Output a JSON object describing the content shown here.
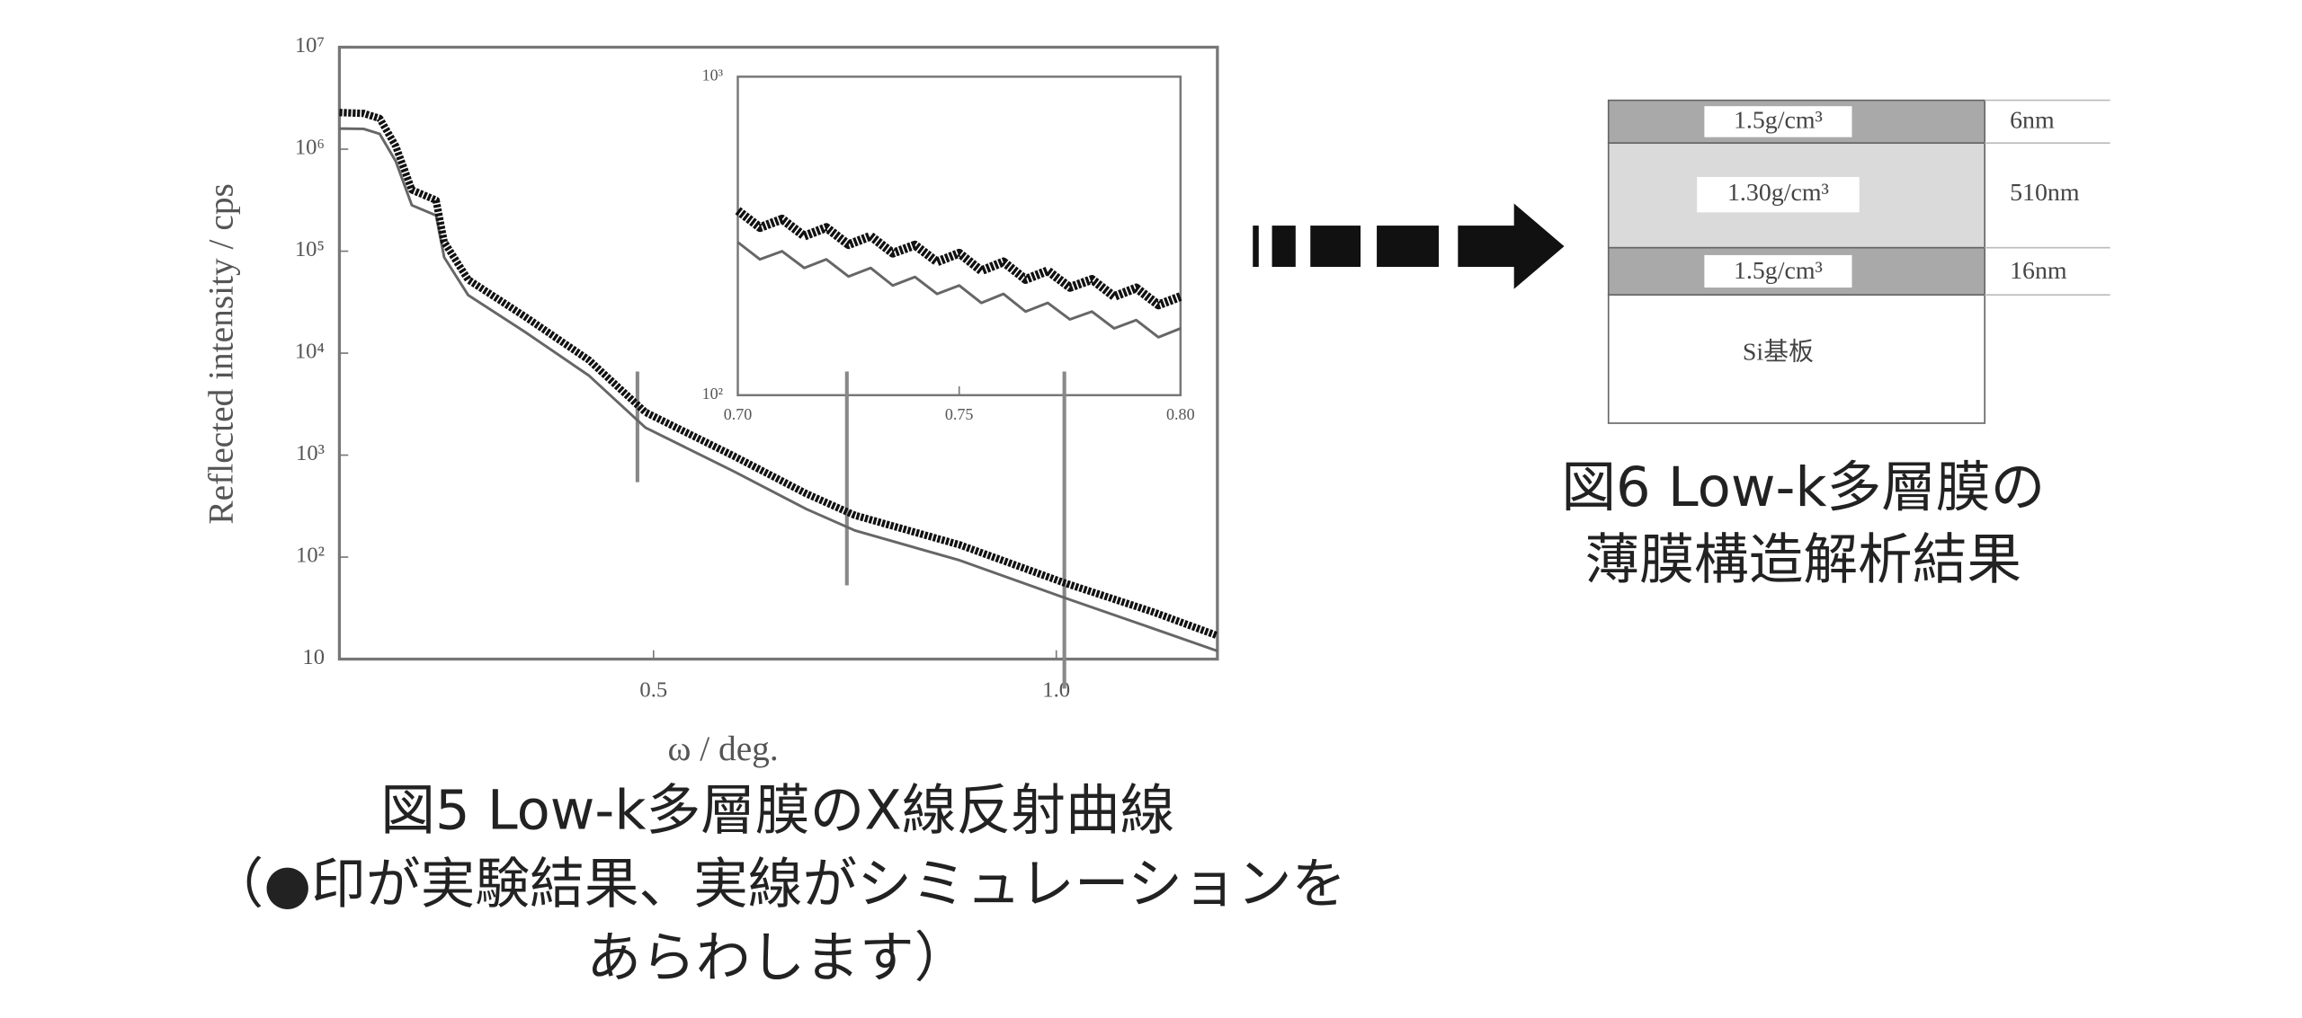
{
  "chart_data": [
    {
      "type": "line",
      "y_label": "Reflected intensity / cps",
      "x_label": "ω / deg.",
      "log_y": true,
      "xlim": [
        0.11,
        1.2
      ],
      "ylim": [
        10,
        10000000
      ],
      "xticks": [
        0.5,
        {
          "value": 1,
          "label": "1.0"
        }
      ],
      "yticks": [
        10,
        {
          "value": 100,
          "label": "10²"
        },
        {
          "value": 1000,
          "label": "10³"
        },
        {
          "value": 10000,
          "label": "10⁴"
        },
        {
          "value": 100000,
          "label": "10⁵"
        },
        {
          "value": 1000000,
          "label": "10⁶"
        },
        {
          "value": 10000000,
          "label": "10⁷"
        }
      ],
      "x": [
        0.11,
        0.14,
        0.16,
        0.18,
        0.2,
        0.23,
        0.24,
        0.27,
        0.34,
        0.42,
        0.49,
        0.6,
        0.69,
        0.75,
        0.88,
        1.01,
        1.12,
        1.2
      ],
      "series": [
        {
          "color": "#111111",
          "style": "dots",
          "values": [
            2290000,
            2240000,
            2000000,
            1070000,
            398000,
            316000,
            123000,
            52500,
            22900,
            8510,
            2630,
            977,
            417,
            257,
            132,
            56,
            29,
            17
          ]
        },
        {
          "color": "#666666",
          "style": "line",
          "values": [
            1590000,
            1580000,
            1410000,
            760000,
            282000,
            224000,
            87000,
            37000,
            16200,
            6000,
            1860,
            690,
            295,
            182,
            93,
            40,
            20,
            12
          ]
        }
      ],
      "vlines": [
        0.48,
        0.74,
        1.01
      ]
    },
    {
      "type": "line",
      "log_y": true,
      "xlim": [
        0.7,
        0.8
      ],
      "ylim": [
        100,
        1000
      ],
      "xticks": [
        {
          "value": 0.7,
          "label": "0.70"
        },
        {
          "value": 0.75,
          "label": "0.75"
        },
        {
          "value": 0.8,
          "label": "0.80"
        }
      ],
      "yticks": [
        {
          "value": 100,
          "label": "10²"
        },
        {
          "value": 1000,
          "label": "10³"
        }
      ],
      "x": [
        0.7,
        0.705,
        0.71,
        0.715,
        0.72,
        0.725,
        0.73,
        0.735,
        0.74,
        0.745,
        0.75,
        0.755,
        0.76,
        0.765,
        0.77,
        0.775,
        0.78,
        0.785,
        0.79,
        0.795,
        0.8
      ],
      "series": [
        {
          "color": "#111111",
          "style": "dots",
          "values": [
            380,
            336,
            357,
            316,
            336,
            297,
            316,
            279,
            296,
            262,
            279,
            246,
            262,
            231,
            246,
            218,
            231,
            204,
            217,
            192,
            204
          ]
        },
        {
          "color": "#666666",
          "style": "line",
          "values": [
            302,
            267,
            283,
            251,
            267,
            236,
            251,
            221,
            235,
            208,
            221,
            195,
            208,
            183,
            195,
            173,
            183,
            162,
            172,
            152,
            162
          ]
        }
      ]
    }
  ],
  "diagram": {
    "layers": [
      {
        "label": "1.5g/cm³",
        "thickness": "6nm"
      },
      {
        "label": "1.30g/cm³",
        "thickness": "510nm"
      },
      {
        "label": "1.5g/cm³",
        "thickness": "16nm"
      },
      {
        "label": "Si基板"
      }
    ]
  },
  "captions": {
    "figure5": [
      "図5  Low-k多層膜のX線反射曲線",
      "（●印が実験結果、実線がシミュレーションを",
      "あらわします）"
    ],
    "figure6": [
      "図6  Low-k多層膜の",
      "薄膜構造解析結果"
    ]
  }
}
